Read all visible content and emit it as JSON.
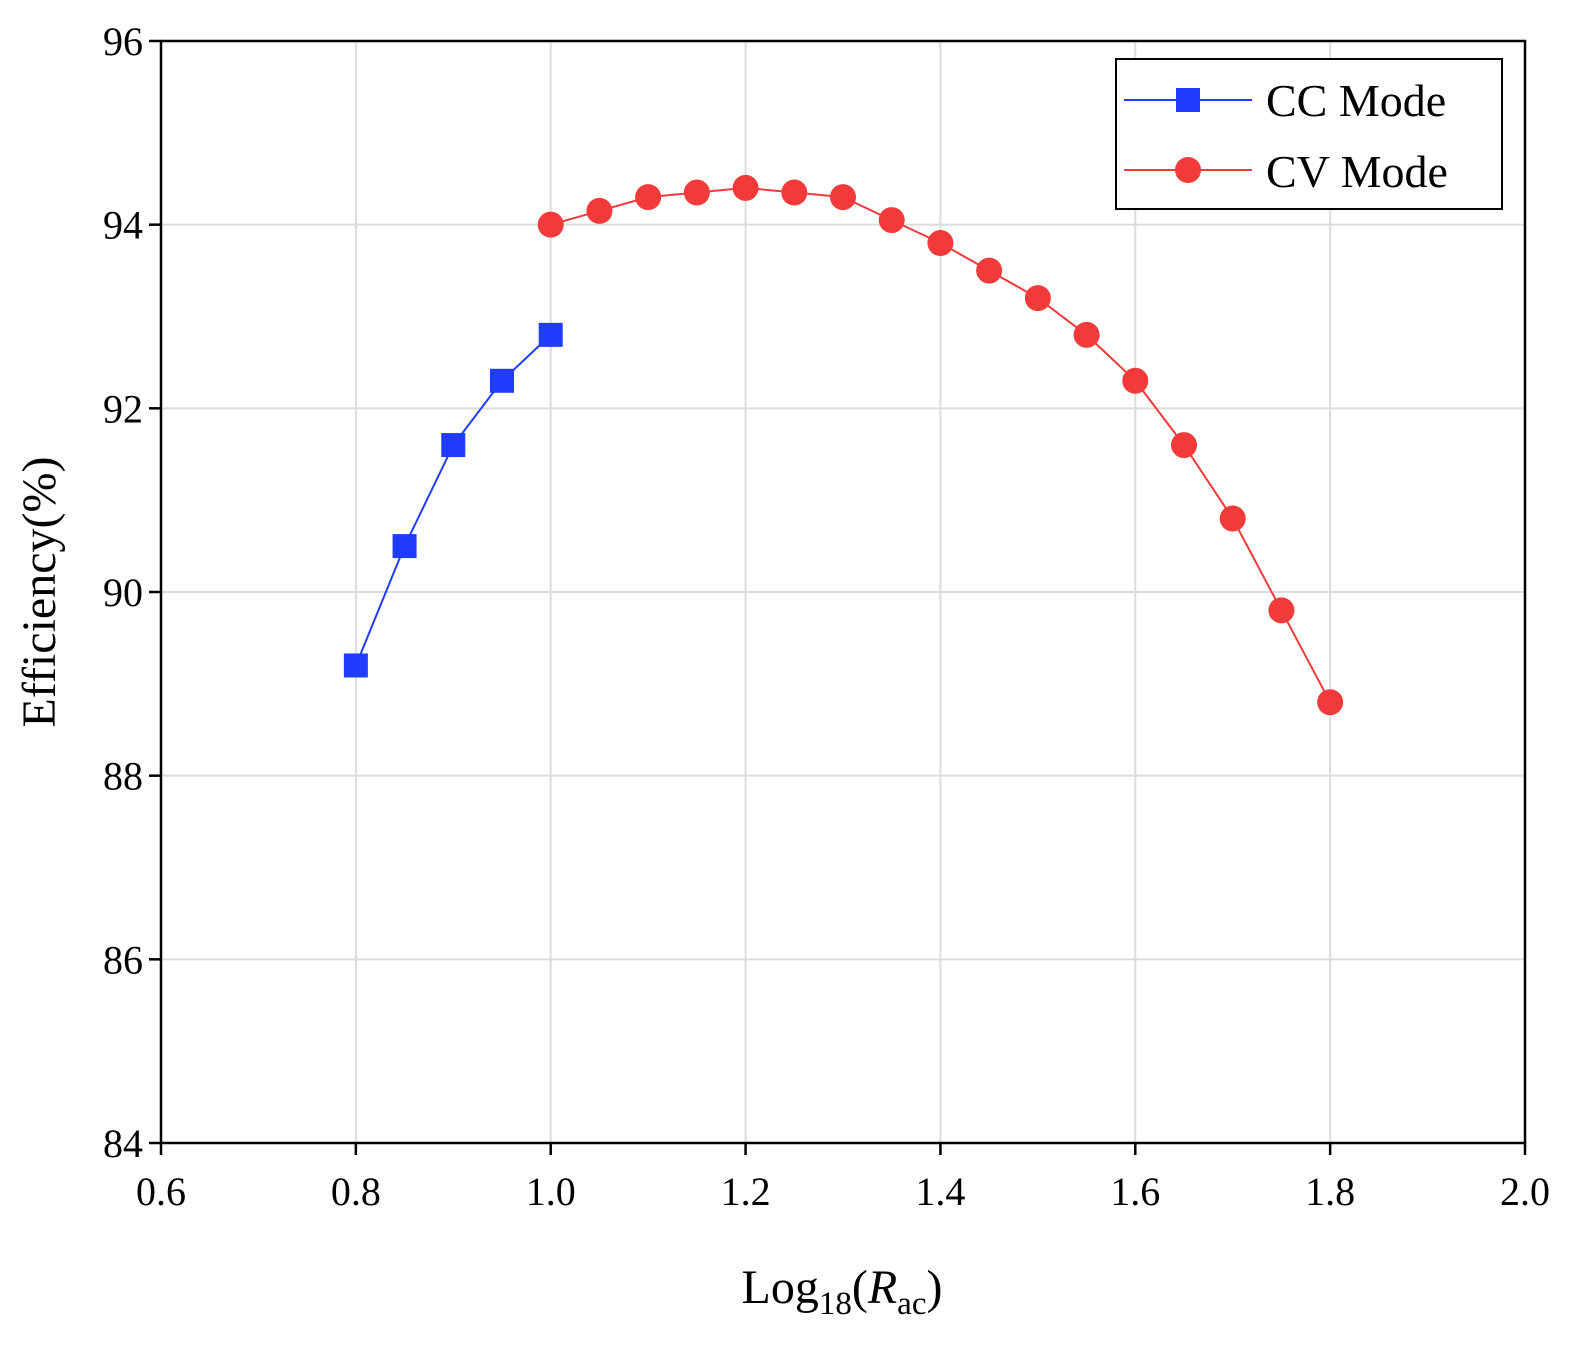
{
  "chart_data": {
    "type": "line",
    "title": "",
    "xlabel": {
      "base": "Log",
      "subscript": "18",
      "open": "(",
      "variable": "R",
      "variable_subscript": "ac",
      "close": ")"
    },
    "ylabel": "Efficiency(%)",
    "xlim": [
      0.6,
      2.0
    ],
    "ylim": [
      84,
      96
    ],
    "xticks": [
      "0.6",
      "0.8",
      "1.0",
      "1.2",
      "1.4",
      "1.6",
      "1.8",
      "2.0"
    ],
    "yticks": [
      "84",
      "86",
      "88",
      "90",
      "92",
      "94",
      "96"
    ],
    "grid": true,
    "legend_position": "top-right",
    "series": [
      {
        "name": "CC Mode",
        "color": "#1f3cff",
        "marker": "square",
        "x": [
          0.8,
          0.85,
          0.9,
          0.95,
          1.0
        ],
        "y": [
          89.2,
          90.5,
          91.6,
          92.3,
          92.8
        ]
      },
      {
        "name": "CV Mode",
        "color": "#f23a3a",
        "marker": "circle",
        "x": [
          1.0,
          1.05,
          1.1,
          1.15,
          1.2,
          1.25,
          1.3,
          1.35,
          1.4,
          1.45,
          1.5,
          1.55,
          1.6,
          1.65,
          1.7,
          1.75,
          1.8
        ],
        "y": [
          94.0,
          94.15,
          94.3,
          94.35,
          94.4,
          94.35,
          94.3,
          94.05,
          93.8,
          93.5,
          93.2,
          92.8,
          92.3,
          91.6,
          90.8,
          89.8,
          88.8
        ]
      }
    ]
  }
}
